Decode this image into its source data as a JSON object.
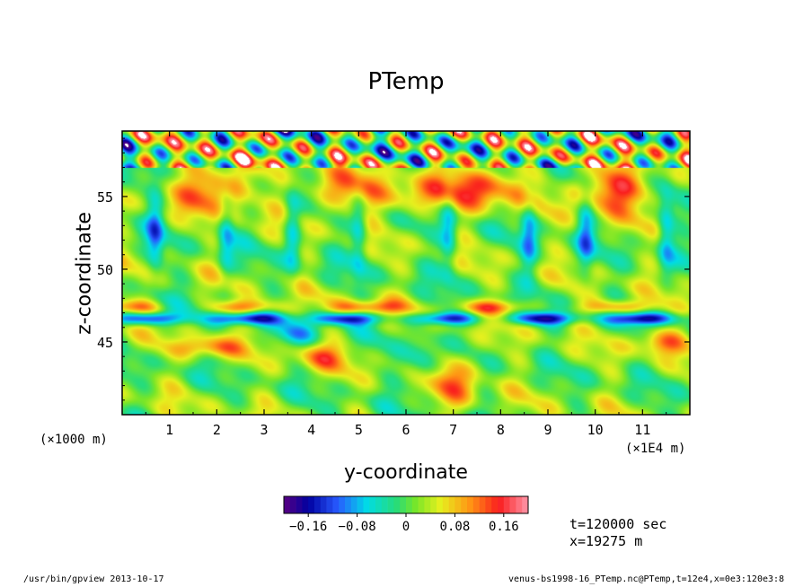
{
  "chart_data": {
    "type": "heatmap",
    "title": "PTemp",
    "xlabel": "y-coordinate",
    "ylabel": "z-coordinate",
    "x_unit_left": "(×1000 m)",
    "x_unit_right": "(×1E4 m)",
    "xlim": [
      0,
      12
    ],
    "ylim": [
      40,
      59.5
    ],
    "x_ticks": [
      "1",
      "2",
      "3",
      "4",
      "5",
      "6",
      "7",
      "8",
      "9",
      "10",
      "11"
    ],
    "y_ticks": [
      "45",
      "50",
      "55"
    ],
    "colorbar": {
      "min": -0.2,
      "max": 0.2,
      "step": 0.01,
      "tick_labels": [
        "−0.16",
        "−0.08",
        "0",
        "0.08",
        "0.16"
      ],
      "tick_values": [
        -0.16,
        -0.08,
        0,
        0.08,
        0.16
      ]
    },
    "info": {
      "time": "t=120000 sec",
      "position": "x=19275 m"
    },
    "footer_left": "/usr/bin/gpview   2013-10-17",
    "footer_right": "venus-bs1998-16_PTemp.nc@PTemp,t=12e4,x=0e3:120e3:8",
    "colors": {
      "frame": "#000000",
      "out_of_range": "#ffffff"
    }
  }
}
